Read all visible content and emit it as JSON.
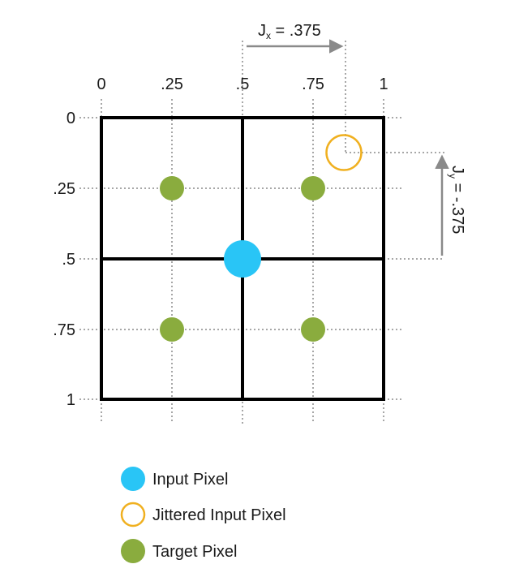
{
  "diagram": {
    "x_ticks": [
      "0",
      ".25",
      ".5",
      ".75",
      "1"
    ],
    "y_ticks": [
      "0",
      ".25",
      ".5",
      ".75",
      "1"
    ],
    "jitter_x": {
      "label": "J",
      "sub": "x",
      "value": " = .375"
    },
    "jitter_y": {
      "label": "J",
      "sub": "y",
      "value": " = -.375"
    },
    "colors": {
      "grid": "#000000",
      "dotted": "#8a8a8a",
      "input_pixel": "#29c5f6",
      "jittered_pixel": "#f0b020",
      "target_pixel": "#8aac3e",
      "arrow": "#8a8a8a"
    }
  },
  "legend": {
    "items": [
      {
        "label": "Input Pixel",
        "kind": "input"
      },
      {
        "label": "Jittered Input Pixel",
        "kind": "jittered"
      },
      {
        "label": "Target Pixel",
        "kind": "target"
      }
    ]
  }
}
